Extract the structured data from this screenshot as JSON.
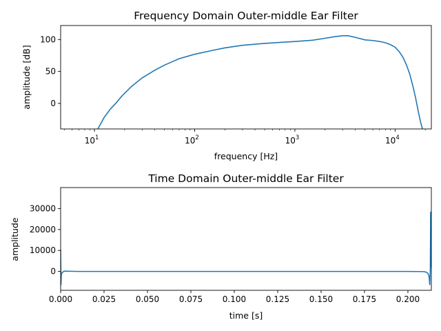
{
  "chart_data": [
    {
      "type": "line",
      "title": "Frequency Domain Outer-middle Ear Filter",
      "xlabel": "frequency [Hz]",
      "ylabel": "amplitude [dB]",
      "xscale": "log",
      "xlim": [
        4.6,
        23000
      ],
      "ylim": [
        -40,
        122
      ],
      "grid": false,
      "xticks": [
        {
          "value": 10,
          "base": "10",
          "exp": "1"
        },
        {
          "value": 100,
          "base": "10",
          "exp": "2"
        },
        {
          "value": 1000,
          "base": "10",
          "exp": "3"
        },
        {
          "value": 10000,
          "base": "10",
          "exp": "4"
        }
      ],
      "yticks": [
        0,
        50,
        100
      ],
      "series": [
        {
          "color": "#1f77b4",
          "x": [
            10.0,
            10.8,
            12.5,
            14.4,
            16.5,
            18.9,
            23.6,
            30,
            40,
            50,
            70,
            100,
            150,
            200,
            300,
            500,
            700,
            1000,
            1500,
            2000,
            2500,
            3000,
            3400,
            4000,
            5000,
            6000,
            7000,
            8000,
            9000,
            10000,
            11000,
            12000,
            13000,
            14000,
            15000,
            16000,
            17000,
            18000,
            18900
          ],
          "y": [
            -45,
            -40,
            -22,
            -9,
            1,
            12,
            27,
            40,
            52,
            60,
            70,
            77,
            83,
            87,
            91,
            94,
            95.5,
            97,
            99,
            102,
            104.5,
            106,
            106,
            103.5,
            99.5,
            98.5,
            97,
            95,
            92,
            88,
            81,
            72,
            60,
            46,
            28,
            9,
            -12,
            -30,
            -42
          ]
        }
      ]
    },
    {
      "type": "line",
      "title": "Time Domain Outer-middle Ear Filter",
      "xlabel": "time [s]",
      "ylabel": "amplitude",
      "xlim": [
        0,
        0.2135
      ],
      "ylim": [
        -9000,
        40000
      ],
      "grid": false,
      "xticks": [
        "0.000",
        "0.025",
        "0.050",
        "0.075",
        "0.100",
        "0.125",
        "0.150",
        "0.175",
        "0.200"
      ],
      "yticks": [
        "0",
        "10000",
        "20000",
        "30000"
      ],
      "series": [
        {
          "color": "#1f77b4",
          "x": [
            0.0,
            0.0001,
            0.0002,
            0.0004,
            0.0008,
            0.002,
            0.01,
            0.05,
            0.1,
            0.15,
            0.2,
            0.209,
            0.2105,
            0.2115,
            0.2122,
            0.2126,
            0.2129,
            0.2131,
            0.2133,
            0.2135
          ],
          "y": [
            10500,
            2000,
            -6500,
            -1500,
            -600,
            150,
            0,
            0,
            0,
            0,
            0,
            -80,
            -300,
            -900,
            -2500,
            -6500,
            1000,
            28500,
            10000,
            2000
          ]
        }
      ]
    }
  ]
}
